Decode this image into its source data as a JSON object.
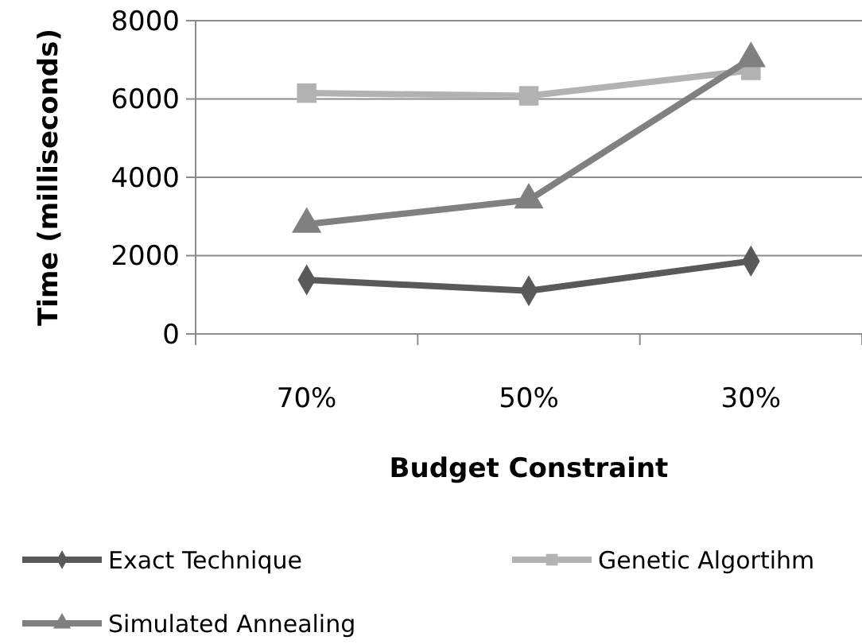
{
  "chart_data": {
    "type": "line",
    "xlabel": "Budget Constraint",
    "ylabel": "Time (milliseconds)",
    "categories": [
      "70%",
      "50%",
      "30%"
    ],
    "ylim": [
      0,
      8000
    ],
    "yticks": [
      0,
      2000,
      4000,
      6000,
      8000
    ],
    "grid": "y",
    "legend": "bottom",
    "line_style": "solid",
    "series": [
      {
        "name": "Exact Technique",
        "color": "#595959",
        "marker": "diamond",
        "values": [
          1380,
          1100,
          1860
        ]
      },
      {
        "name": "Genetic Algortihm",
        "color": "#b2b2b2",
        "marker": "square",
        "values": [
          6150,
          6080,
          6730
        ]
      },
      {
        "name": "Simulated Annealing",
        "color": "#808080",
        "marker": "triangle",
        "values": [
          2800,
          3420,
          7030
        ]
      }
    ]
  }
}
